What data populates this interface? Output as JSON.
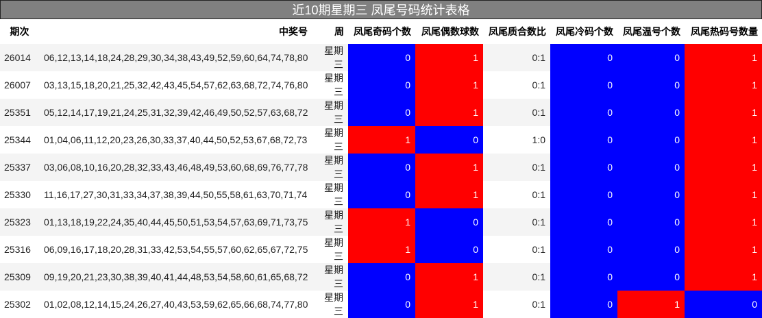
{
  "title": "近10期星期三 凤尾号码统计表格",
  "colors": {
    "one": "#ff0000",
    "zero": "#0000ff"
  },
  "headers": [
    "期次",
    "中奖号",
    "周",
    "凤尾奇码个数",
    "凤尾偶数球数",
    "凤尾质合数比",
    "凤尾冷码个数",
    "凤尾温号个数",
    "凤尾热码号数量"
  ],
  "rows": [
    {
      "period": "26014",
      "numbers": "06,12,13,14,18,24,28,29,30,34,38,43,49,52,59,60,64,74,78,80",
      "week": "星期三",
      "odd": "0",
      "even": "1",
      "ratio": "0:1",
      "cold": "0",
      "warm": "0",
      "hot": "1"
    },
    {
      "period": "26007",
      "numbers": "03,13,15,18,20,21,25,32,42,43,45,54,57,62,63,68,72,74,76,80",
      "week": "星期三",
      "odd": "0",
      "even": "1",
      "ratio": "0:1",
      "cold": "0",
      "warm": "0",
      "hot": "1"
    },
    {
      "period": "25351",
      "numbers": "05,12,14,17,19,21,24,25,31,32,39,42,46,49,50,52,57,63,68,72",
      "week": "星期三",
      "odd": "0",
      "even": "1",
      "ratio": "0:1",
      "cold": "0",
      "warm": "0",
      "hot": "1"
    },
    {
      "period": "25344",
      "numbers": "01,04,06,11,12,20,23,26,30,33,37,40,44,50,52,53,67,68,72,73",
      "week": "星期三",
      "odd": "1",
      "even": "0",
      "ratio": "1:0",
      "cold": "0",
      "warm": "0",
      "hot": "1"
    },
    {
      "period": "25337",
      "numbers": "03,06,08,10,16,20,28,32,33,43,46,48,49,53,60,68,69,76,77,78",
      "week": "星期三",
      "odd": "0",
      "even": "1",
      "ratio": "0:1",
      "cold": "0",
      "warm": "0",
      "hot": "1"
    },
    {
      "period": "25330",
      "numbers": "11,16,17,27,30,31,33,34,37,38,39,44,50,55,58,61,63,70,71,74",
      "week": "星期三",
      "odd": "0",
      "even": "1",
      "ratio": "0:1",
      "cold": "0",
      "warm": "0",
      "hot": "1"
    },
    {
      "period": "25323",
      "numbers": "01,13,18,19,22,24,35,40,44,45,50,51,53,54,57,63,69,71,73,75",
      "week": "星期三",
      "odd": "1",
      "even": "0",
      "ratio": "0:1",
      "cold": "0",
      "warm": "0",
      "hot": "1"
    },
    {
      "period": "25316",
      "numbers": "06,09,16,17,18,20,28,31,33,42,53,54,55,57,60,62,65,67,72,75",
      "week": "星期三",
      "odd": "1",
      "even": "0",
      "ratio": "0:1",
      "cold": "0",
      "warm": "0",
      "hot": "1"
    },
    {
      "period": "25309",
      "numbers": "09,19,20,21,23,30,38,39,40,41,44,48,53,54,58,60,61,65,68,72",
      "week": "星期三",
      "odd": "0",
      "even": "1",
      "ratio": "0:1",
      "cold": "0",
      "warm": "0",
      "hot": "1"
    },
    {
      "period": "25302",
      "numbers": "01,02,08,12,14,15,24,26,27,40,43,53,59,62,65,66,68,74,77,80",
      "week": "星期三",
      "odd": "0",
      "even": "1",
      "ratio": "0:1",
      "cold": "0",
      "warm": "1",
      "hot": "0"
    }
  ]
}
